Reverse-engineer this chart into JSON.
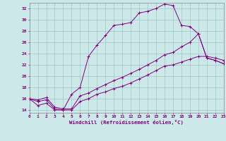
{
  "xlabel": "Windchill (Refroidissement éolien,°C)",
  "bg_color": "#cce8e8",
  "grid_color": "#aacccc",
  "line_color": "#800080",
  "spine_color": "#888888",
  "xmin": 0,
  "xmax": 23,
  "ymin": 13.5,
  "ymax": 33.0,
  "yticks": [
    14,
    16,
    18,
    20,
    22,
    24,
    26,
    28,
    30,
    32
  ],
  "xticks": [
    0,
    1,
    2,
    3,
    4,
    5,
    6,
    7,
    8,
    9,
    10,
    11,
    12,
    13,
    14,
    15,
    16,
    17,
    18,
    19,
    20,
    21,
    22,
    23
  ],
  "curve1_x": [
    0,
    1,
    2,
    3,
    4,
    5,
    6,
    7,
    8,
    9,
    10,
    11,
    12,
    13,
    14,
    15,
    16,
    17,
    18,
    19,
    20,
    21,
    22,
    23
  ],
  "curve1_y": [
    16.0,
    14.8,
    15.2,
    14.0,
    14.0,
    16.8,
    18.0,
    23.5,
    25.5,
    27.2,
    29.0,
    29.2,
    29.5,
    31.2,
    31.5,
    32.0,
    32.8,
    32.5,
    29.0,
    28.8,
    27.5,
    23.2,
    22.8,
    22.2
  ],
  "curve2_x": [
    0,
    1,
    2,
    3,
    4,
    5,
    6,
    7,
    8,
    9,
    10,
    11,
    12,
    13,
    14,
    15,
    16,
    17,
    18,
    19,
    20,
    21,
    22,
    23
  ],
  "curve2_y": [
    16.0,
    15.8,
    16.2,
    14.5,
    14.2,
    14.2,
    16.5,
    17.0,
    17.8,
    18.5,
    19.2,
    19.8,
    20.5,
    21.2,
    22.0,
    22.8,
    23.8,
    24.2,
    25.2,
    26.0,
    27.5,
    23.2,
    22.8,
    22.2
  ],
  "curve3_x": [
    0,
    1,
    2,
    3,
    4,
    5,
    6,
    7,
    8,
    9,
    10,
    11,
    12,
    13,
    14,
    15,
    16,
    17,
    18,
    19,
    20,
    21,
    22,
    23
  ],
  "curve3_y": [
    16.0,
    15.5,
    15.8,
    14.2,
    14.0,
    14.0,
    15.5,
    16.0,
    16.8,
    17.2,
    17.8,
    18.2,
    18.8,
    19.5,
    20.2,
    21.0,
    21.8,
    22.0,
    22.5,
    23.0,
    23.5,
    23.5,
    23.2,
    22.8
  ]
}
